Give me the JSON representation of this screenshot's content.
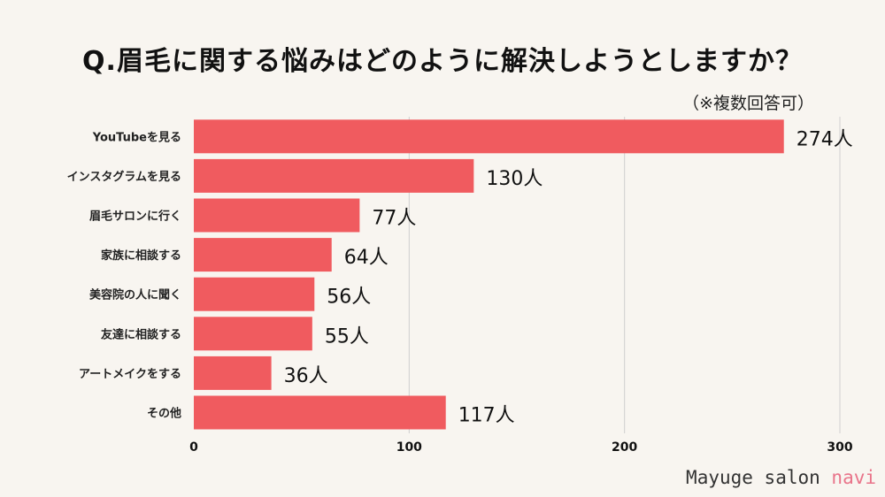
{
  "chart_data": {
    "type": "bar",
    "orientation": "horizontal",
    "title": "Q.眉毛に関する悩みはどのように解決しようとしますか？",
    "subtitle": "（※複数回答可）",
    "categories": [
      "YouTubeを見る",
      "インスタグラムを見る",
      "眉毛サロンに行く",
      "家族に相談する",
      "美容院の人に聞く",
      "友達に相談する",
      "アートメイクをする",
      "その他"
    ],
    "values": [
      274,
      130,
      77,
      64,
      56,
      55,
      36,
      117
    ],
    "unit": "人",
    "xlim": [
      0,
      300
    ],
    "ticks": [
      0,
      100,
      200,
      300
    ],
    "grid": true,
    "bar_color": "#f05b5f"
  },
  "brand": {
    "prefix": "Mayuge salon ",
    "accent": "navi",
    "accent_color": "#e9748a"
  }
}
